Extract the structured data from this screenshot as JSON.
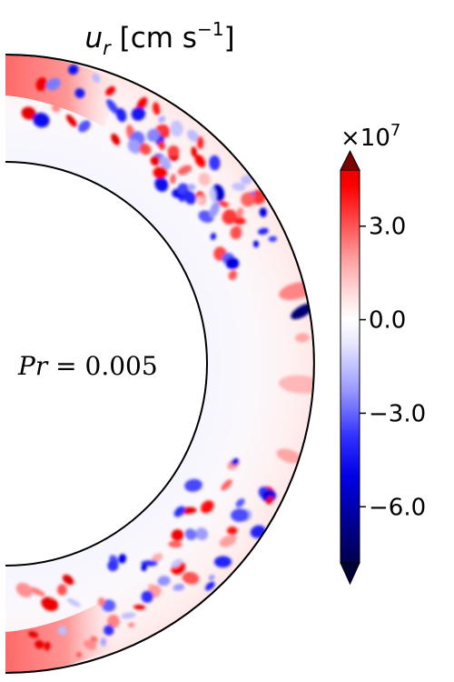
{
  "chart_data": {
    "type": "heatmap",
    "title": {
      "symbol": "u",
      "subscript": "r",
      "units_prefix": " [cm s",
      "units_exponent": "−1",
      "units_suffix": "]"
    },
    "annotation": {
      "label": "Pr",
      "equals": " = ",
      "value": "0.005"
    },
    "colorbar": {
      "colormap": "seismic",
      "multiplier": "×10",
      "multiplier_exponent": "7",
      "range": [
        -7.8,
        4.8
      ],
      "ticks": [
        {
          "value": 3.0,
          "label": "3.0"
        },
        {
          "value": 0.0,
          "label": "0.0"
        },
        {
          "value": -3.0,
          "label": "−3.0"
        },
        {
          "value": -6.0,
          "label": "−6.0"
        }
      ],
      "extend": "both"
    },
    "domain": {
      "shape": "meridional half-annulus",
      "inner_radius_ratio": 0.65,
      "latitude_range_deg": [
        -90,
        90
      ]
    },
    "features": [
      {
        "region": "near-pole bands",
        "sign": "positive",
        "magnitude": 2.5
      },
      {
        "region": "upper outer shell",
        "sign": "mixed",
        "magnitude_min": -6.5,
        "magnitude_max": 3.5
      },
      {
        "region": "equatorial outer shell",
        "sign": "positive",
        "magnitude": 1.5
      },
      {
        "region": "equatorial outer shell",
        "sign": "negative",
        "magnitude": -7.0
      },
      {
        "region": "lower outer shell",
        "sign": "mixed",
        "magnitude_min": -6.0,
        "magnitude_max": 3.5
      },
      {
        "region": "inner shell",
        "sign": "weak",
        "magnitude": 0.2
      }
    ]
  }
}
